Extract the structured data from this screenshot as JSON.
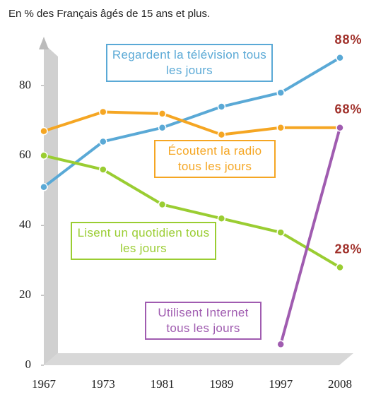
{
  "chart_data": {
    "type": "line",
    "title": "En % des Français âgés de 15 ans et plus.",
    "categories": [
      "1967",
      "1973",
      "1981",
      "1989",
      "1997",
      "2008"
    ],
    "series": [
      {
        "name": "Regardent la télévision tous les jours",
        "color": "#5aa9d6",
        "values": [
          51,
          64,
          68,
          74,
          78,
          88
        ],
        "value_labels": [
          null,
          null,
          null,
          null,
          null,
          "88%"
        ]
      },
      {
        "name": "Écoutent la radio tous les jours",
        "color": "#f5a623",
        "values": [
          67,
          72.5,
          72,
          66,
          68,
          68
        ],
        "value_labels": [
          null,
          null,
          null,
          null,
          null,
          "68%"
        ]
      },
      {
        "name": "Lisent un quotidien tous les jours",
        "color": "#9acd32",
        "values": [
          60,
          56,
          46,
          42,
          38,
          28
        ],
        "value_labels": [
          null,
          null,
          null,
          null,
          null,
          "28%"
        ]
      },
      {
        "name": "Utilisent Internet tous les jours",
        "color": "#a05cb0",
        "values": [
          null,
          null,
          null,
          null,
          6,
          68
        ]
      }
    ],
    "ylim": [
      0,
      92
    ],
    "yticks": [
      0,
      20,
      40,
      60,
      80
    ]
  }
}
